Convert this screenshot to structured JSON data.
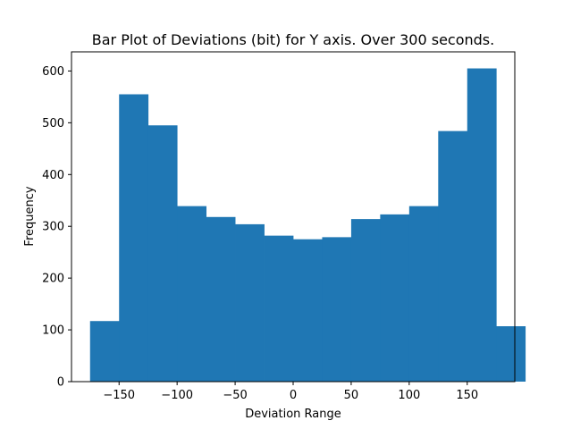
{
  "chart_data": {
    "type": "bar",
    "title": "Bar Plot of Deviations (bit) for Y axis. Over 300 seconds.",
    "xlabel": "Deviation Range",
    "ylabel": "Frequency",
    "xlim": [
      -191,
      191
    ],
    "ylim": [
      0,
      637
    ],
    "xticks": [
      -150,
      -100,
      -50,
      0,
      50,
      100,
      150
    ],
    "xtick_labels": [
      "−150",
      "−100",
      "−50",
      "0",
      "50",
      "100",
      "150"
    ],
    "yticks": [
      0,
      100,
      200,
      300,
      400,
      500,
      600
    ],
    "ytick_labels": [
      "0",
      "100",
      "200",
      "300",
      "400",
      "500",
      "600"
    ],
    "bins": [
      {
        "start": -175,
        "end": -150,
        "value": 117
      },
      {
        "start": -150,
        "end": -125,
        "value": 555
      },
      {
        "start": -125,
        "end": -100,
        "value": 495
      },
      {
        "start": -100,
        "end": -75,
        "value": 339
      },
      {
        "start": -75,
        "end": -50,
        "value": 318
      },
      {
        "start": -50,
        "end": -25,
        "value": 304
      },
      {
        "start": -25,
        "end": 0,
        "value": 282
      },
      {
        "start": 0,
        "end": 25,
        "value": 275
      },
      {
        "start": 25,
        "end": 50,
        "value": 279
      },
      {
        "start": 50,
        "end": 75,
        "value": 314
      },
      {
        "start": 75,
        "end": 100,
        "value": 323
      },
      {
        "start": 100,
        "end": 125,
        "value": 339
      },
      {
        "start": 125,
        "end": 150,
        "value": 484
      },
      {
        "start": 150,
        "end": 175,
        "value": 605
      },
      {
        "start": 175,
        "end": 200,
        "value": 107
      }
    ],
    "bar_color": "#1f77b4",
    "grid": false,
    "legend": "none"
  }
}
